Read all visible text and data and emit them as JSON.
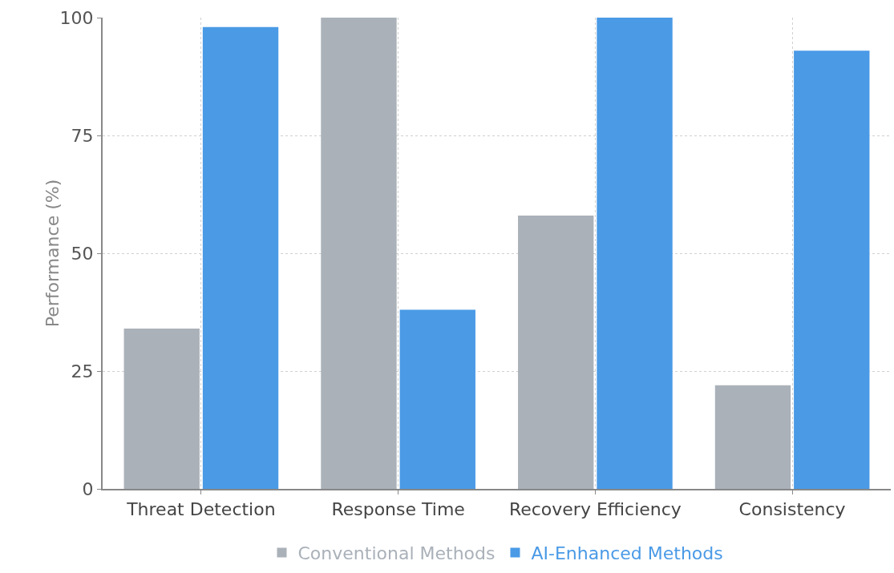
{
  "chart_data": {
    "type": "bar",
    "ylabel": "Performance (%)",
    "categories": [
      "Threat Detection",
      "Response Time",
      "Recovery Efficiency",
      "Consistency"
    ],
    "series": [
      {
        "name": "Conventional Methods",
        "color": "#aab1b9",
        "values": [
          34,
          100,
          58,
          22
        ]
      },
      {
        "name": "AI-Enhanced Methods",
        "color": "#4a9ae6",
        "values": [
          98,
          38,
          100,
          93
        ]
      }
    ],
    "ylim": [
      0,
      100
    ],
    "yticks": [
      0,
      25,
      50,
      75,
      100
    ],
    "grid": true,
    "legend": "bottom"
  }
}
